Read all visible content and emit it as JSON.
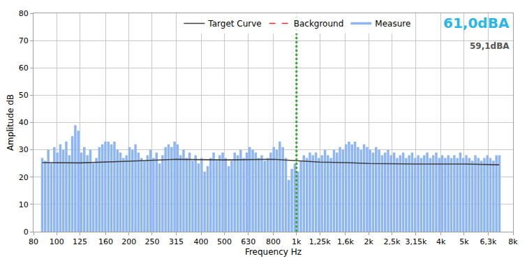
{
  "chart_data": {
    "type": "bar",
    "x_label": "Frequency Hz",
    "y_label": "Amplitude dB",
    "log": "x",
    "grid": true,
    "legend": "top",
    "xlim": [
      80,
      8000
    ],
    "ylim": [
      0,
      80
    ],
    "xticks": [
      80,
      100,
      125,
      160,
      200,
      250,
      315,
      400,
      500,
      630,
      800,
      {
        "value": 1000,
        "label": "1k"
      },
      {
        "value": 1250,
        "label": "1,25k"
      },
      {
        "value": 1600,
        "label": "1,6k"
      },
      {
        "value": 2000,
        "label": "2k"
      },
      {
        "value": 2500,
        "label": "2,5k"
      },
      {
        "value": 3150,
        "label": "3,15k"
      },
      {
        "value": 4000,
        "label": "4k"
      },
      {
        "value": 5000,
        "label": "5k"
      },
      {
        "value": 6300,
        "label": "6,3k"
      },
      {
        "value": 8000,
        "label": "8k"
      }
    ],
    "yticks": [
      0,
      10,
      20,
      30,
      40,
      50,
      60,
      70,
      80
    ],
    "series": [
      {
        "name": "Target Curve",
        "type": "line",
        "color": "#404040",
        "line_style": "solid",
        "x": [
          87,
          125,
          200,
          315,
          500,
          800,
          1000,
          1250,
          1600,
          2000,
          3150,
          5000,
          7000
        ],
        "values": [
          25.3,
          25.2,
          25.8,
          26.5,
          26.3,
          26.5,
          26,
          25.5,
          25.3,
          25,
          24.8,
          24.8,
          24.5
        ]
      },
      {
        "name": "Background",
        "type": "line",
        "color": "#e03030",
        "line_style": "dash",
        "x": [],
        "values": []
      },
      {
        "name": "Measure",
        "type": "bar",
        "color": "#8fb6f4",
        "x": [
          87,
          89.5,
          92.2,
          94.9,
          97.7,
          100.5,
          103.5,
          106.5,
          109.6,
          112.8,
          116.1,
          119.5,
          123,
          126.6,
          130.3,
          134.2,
          138.1,
          142.1,
          146.3,
          150.6,
          155,
          159.5,
          164.2,
          169,
          174,
          179.1,
          184.3,
          189.7,
          195.3,
          201,
          206.9,
          213,
          219.2,
          225.6,
          232.2,
          239,
          246,
          253.3,
          260.7,
          268.3,
          276.2,
          284.3,
          292.6,
          301.2,
          310,
          319.1,
          328.4,
          338,
          347.9,
          358.1,
          368.6,
          379.4,
          390.5,
          402,
          413.8,
          425.9,
          438.4,
          451.2,
          464.4,
          478,
          492,
          506.4,
          521.3,
          536.6,
          552.3,
          568.5,
          585.1,
          602.3,
          619.9,
          638.1,
          656.8,
          676,
          695.8,
          716.2,
          737.2,
          758.8,
          781,
          803.9,
          827.5,
          851.7,
          876.7,
          902.4,
          928.8,
          956,
          984,
          1013,
          1043,
          1073,
          1105,
          1137,
          1170,
          1205,
          1240,
          1276,
          1314,
          1352,
          1392,
          1433,
          1475,
          1518,
          1563,
          1608,
          1655,
          1704,
          1754,
          1805,
          1858,
          1913,
          1969,
          2026,
          2086,
          2147,
          2210,
          2275,
          2341,
          2410,
          2481,
          2553,
          2628,
          2705,
          2785,
          2866,
          2950,
          3037,
          3126,
          3217,
          3312,
          3409,
          3509,
          3612,
          3717,
          3826,
          3938,
          4054,
          4173,
          4295,
          4421,
          4551,
          4684,
          4821,
          4963,
          5108,
          5258,
          5412,
          5571,
          5734,
          5902,
          6075,
          6253,
          6436,
          6625,
          6819,
          7019
        ],
        "values": [
          27,
          26,
          30,
          25,
          31,
          29,
          32,
          30,
          33,
          28,
          35,
          39,
          37,
          29,
          31,
          28,
          30,
          25,
          27,
          31,
          32,
          33,
          33,
          32,
          33,
          30,
          29,
          27,
          28,
          31,
          30,
          32,
          29,
          27,
          26,
          28,
          30,
          27,
          29,
          25,
          28,
          31,
          32,
          31,
          33,
          32,
          28,
          30,
          27,
          29,
          26,
          28,
          25,
          27,
          22,
          24,
          27,
          29,
          26,
          28,
          29,
          27,
          24,
          26,
          29,
          28,
          30,
          27,
          29,
          31,
          30,
          29,
          27,
          28,
          26,
          27,
          29,
          31,
          30,
          33,
          31,
          27,
          19,
          23,
          25,
          22,
          26,
          28,
          27,
          29,
          28,
          29,
          27,
          28,
          30,
          28,
          27,
          30,
          29,
          31,
          30,
          32,
          33,
          32,
          33,
          31,
          30,
          32,
          31,
          30,
          29,
          31,
          30,
          28,
          29,
          30,
          28,
          29,
          27,
          28,
          29,
          27,
          28,
          29,
          27,
          28,
          27,
          28,
          29,
          27,
          28,
          29,
          27,
          28,
          27,
          28,
          27,
          28,
          27,
          29,
          27,
          28,
          27,
          26,
          28,
          27,
          26,
          27,
          28,
          27,
          26,
          28,
          28
        ]
      }
    ],
    "reference_line": {
      "x": 1000,
      "color": "#33aa33",
      "line_style": "dot"
    },
    "annotations": [
      {
        "text": "61,0dBA",
        "color": "#29b6e8"
      },
      {
        "text": "59,1dBA",
        "color": "#555555"
      }
    ]
  }
}
